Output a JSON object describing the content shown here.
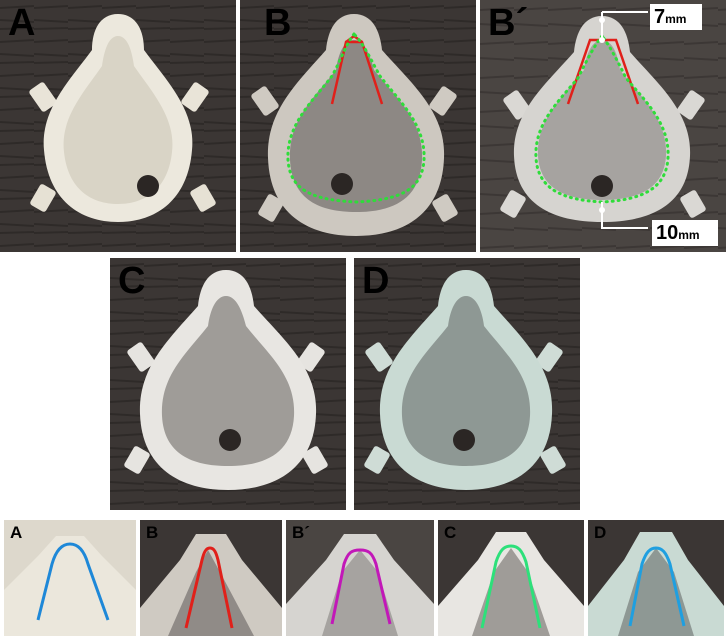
{
  "panels": {
    "a": "A",
    "b": "B",
    "b_prime": "B´",
    "c": "C",
    "d": "D"
  },
  "measurements": {
    "top_value": "7",
    "bottom_value": "10",
    "unit": "mm"
  },
  "small_panels": {
    "a": "A",
    "b": "B",
    "b_prime": "B´",
    "c": "C",
    "d": "D"
  },
  "colors": {
    "red_outline": "#e0201a",
    "green_dotted": "#2fdc3a",
    "blue_outline": "#1e88d8",
    "magenta_outline": "#c218b8",
    "green_outline": "#2de07a",
    "cyan_outline": "#1f9fe0"
  }
}
